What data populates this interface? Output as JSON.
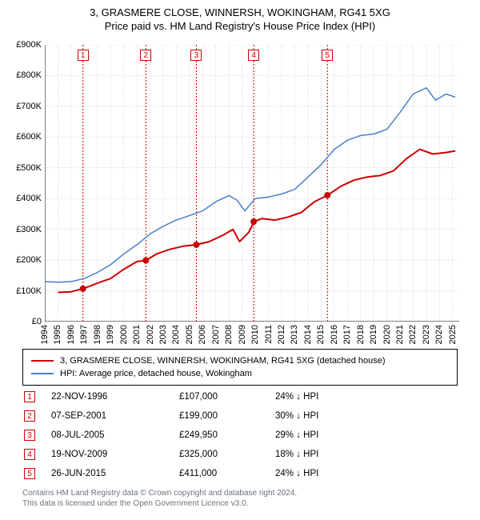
{
  "title": {
    "main": "3, GRASMERE CLOSE, WINNERSH, WOKINGHAM, RG41 5XG",
    "sub": "Price paid vs. HM Land Registry's House Price Index (HPI)"
  },
  "chart": {
    "type": "line",
    "background_color": "#ffffff",
    "grid_color": "#b0b0b0",
    "grid_dash": "1,2",
    "axis_color": "#000000",
    "xlim": [
      1994,
      2025.5
    ],
    "ylim": [
      0,
      900000
    ],
    "ytick_step": 100000,
    "y_ticks": [
      "£0",
      "£100K",
      "£200K",
      "£300K",
      "£400K",
      "£500K",
      "£600K",
      "£700K",
      "£800K",
      "£900K"
    ],
    "x_ticks": [
      "1994",
      "1995",
      "1996",
      "1997",
      "1998",
      "1999",
      "2000",
      "2001",
      "2002",
      "2003",
      "2004",
      "2005",
      "2006",
      "2007",
      "2008",
      "2009",
      "2010",
      "2011",
      "2012",
      "2013",
      "2014",
      "2015",
      "2016",
      "2017",
      "2018",
      "2019",
      "2020",
      "2021",
      "2022",
      "2023",
      "2024",
      "2025"
    ],
    "series": [
      {
        "name": "property",
        "label": "3, GRASMERE CLOSE, WINNERSH, WOKINGHAM, RG41 5XG (detached house)",
        "color": "#cc0000",
        "line_width": 2,
        "points": [
          [
            1995.0,
            95000
          ],
          [
            1996.0,
            97000
          ],
          [
            1996.9,
            107000
          ],
          [
            1998.0,
            125000
          ],
          [
            1999.0,
            140000
          ],
          [
            2000.0,
            170000
          ],
          [
            2001.0,
            195000
          ],
          [
            2001.7,
            199000
          ],
          [
            2002.5,
            220000
          ],
          [
            2003.5,
            235000
          ],
          [
            2004.5,
            245000
          ],
          [
            2005.5,
            249950
          ],
          [
            2006.5,
            260000
          ],
          [
            2007.5,
            280000
          ],
          [
            2008.3,
            300000
          ],
          [
            2008.8,
            260000
          ],
          [
            2009.5,
            290000
          ],
          [
            2009.9,
            325000
          ],
          [
            2010.5,
            335000
          ],
          [
            2011.5,
            330000
          ],
          [
            2012.5,
            340000
          ],
          [
            2013.5,
            355000
          ],
          [
            2014.5,
            390000
          ],
          [
            2015.5,
            411000
          ],
          [
            2016.5,
            440000
          ],
          [
            2017.5,
            460000
          ],
          [
            2018.5,
            470000
          ],
          [
            2019.5,
            475000
          ],
          [
            2020.5,
            490000
          ],
          [
            2021.5,
            530000
          ],
          [
            2022.5,
            560000
          ],
          [
            2023.5,
            545000
          ],
          [
            2024.5,
            550000
          ],
          [
            2025.2,
            555000
          ]
        ]
      },
      {
        "name": "hpi",
        "label": "HPI: Average price, detached house, Wokingham",
        "color": "#4a7fc8",
        "line_width": 1.5,
        "points": [
          [
            1994.0,
            130000
          ],
          [
            1995.0,
            128000
          ],
          [
            1996.0,
            130000
          ],
          [
            1997.0,
            140000
          ],
          [
            1998.0,
            160000
          ],
          [
            1999.0,
            185000
          ],
          [
            2000.0,
            220000
          ],
          [
            2001.0,
            250000
          ],
          [
            2002.0,
            285000
          ],
          [
            2003.0,
            310000
          ],
          [
            2004.0,
            330000
          ],
          [
            2005.0,
            345000
          ],
          [
            2006.0,
            360000
          ],
          [
            2007.0,
            390000
          ],
          [
            2008.0,
            410000
          ],
          [
            2008.6,
            395000
          ],
          [
            2009.2,
            360000
          ],
          [
            2010.0,
            400000
          ],
          [
            2011.0,
            405000
          ],
          [
            2012.0,
            415000
          ],
          [
            2013.0,
            430000
          ],
          [
            2014.0,
            470000
          ],
          [
            2015.0,
            510000
          ],
          [
            2016.0,
            560000
          ],
          [
            2017.0,
            590000
          ],
          [
            2018.0,
            605000
          ],
          [
            2019.0,
            610000
          ],
          [
            2020.0,
            625000
          ],
          [
            2021.0,
            680000
          ],
          [
            2022.0,
            740000
          ],
          [
            2023.0,
            760000
          ],
          [
            2023.7,
            720000
          ],
          [
            2024.5,
            740000
          ],
          [
            2025.2,
            730000
          ]
        ]
      }
    ],
    "sale_markers": [
      {
        "n": "1",
        "x": 1996.9,
        "y": 107000,
        "color": "#cc0000",
        "vline_color": "#cc0000"
      },
      {
        "n": "2",
        "x": 2001.68,
        "y": 199000,
        "color": "#cc0000",
        "vline_color": "#cc0000"
      },
      {
        "n": "3",
        "x": 2005.52,
        "y": 249950,
        "color": "#cc0000",
        "vline_color": "#cc0000"
      },
      {
        "n": "4",
        "x": 2009.88,
        "y": 325000,
        "color": "#cc0000",
        "vline_color": "#cc0000"
      },
      {
        "n": "5",
        "x": 2015.48,
        "y": 411000,
        "color": "#cc0000",
        "vline_color": "#cc0000"
      }
    ],
    "marker_radius": 4
  },
  "legend": {
    "items": [
      {
        "color": "#cc0000",
        "label": "3, GRASMERE CLOSE, WINNERSH, WOKINGHAM, RG41 5XG (detached house)"
      },
      {
        "color": "#4a7fc8",
        "label": "HPI: Average price, detached house, Wokingham"
      }
    ]
  },
  "sales": [
    {
      "n": "1",
      "date": "22-NOV-1996",
      "price": "£107,000",
      "delta": "24% ↓ HPI",
      "color": "#cc0000"
    },
    {
      "n": "2",
      "date": "07-SEP-2001",
      "price": "£199,000",
      "delta": "30% ↓ HPI",
      "color": "#cc0000"
    },
    {
      "n": "3",
      "date": "08-JUL-2005",
      "price": "£249,950",
      "delta": "29% ↓ HPI",
      "color": "#cc0000"
    },
    {
      "n": "4",
      "date": "19-NOV-2009",
      "price": "£325,000",
      "delta": "18% ↓ HPI",
      "color": "#cc0000"
    },
    {
      "n": "5",
      "date": "26-JUN-2015",
      "price": "£411,000",
      "delta": "24% ↓ HPI",
      "color": "#cc0000"
    }
  ],
  "footer": {
    "line1": "Contains HM Land Registry data © Crown copyright and database right 2024.",
    "line2": "This data is licensed under the Open Government Licence v3.0."
  }
}
